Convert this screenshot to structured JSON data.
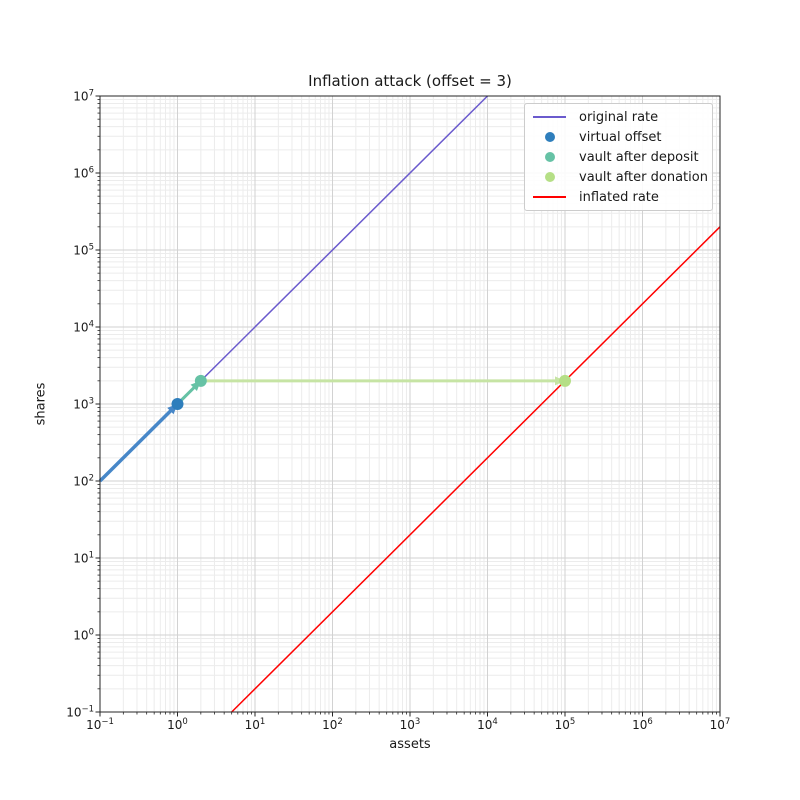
{
  "chart_data": {
    "type": "line",
    "title": "Inflation attack (offset = 3)",
    "xlabel": "assets",
    "ylabel": "shares",
    "x_scale": "log",
    "y_scale": "log",
    "xlim": [
      0.1,
      10000000
    ],
    "ylim": [
      0.1,
      10000000
    ],
    "x_tick_exponents": [
      -1,
      0,
      1,
      2,
      3,
      4,
      5,
      6,
      7
    ],
    "y_tick_exponents": [
      -1,
      0,
      1,
      2,
      3,
      4,
      5,
      6,
      7
    ],
    "grid": {
      "major": true,
      "minor": true
    },
    "series": [
      {
        "name": "original rate",
        "kind": "line",
        "color": "#6a5acd",
        "width": 1.5,
        "points": [
          [
            0.1,
            100
          ],
          [
            10000,
            10000000
          ]
        ]
      },
      {
        "name": "virtual offset",
        "kind": "scatter",
        "color": "#2e7ebc",
        "points": [
          [
            1,
            1000
          ]
        ]
      },
      {
        "name": "vault after deposit",
        "kind": "scatter",
        "color": "#66c2a5",
        "points": [
          [
            2,
            2000
          ]
        ]
      },
      {
        "name": "vault after donation",
        "kind": "scatter",
        "color": "#b5df86",
        "points": [
          [
            100000,
            2000
          ]
        ]
      },
      {
        "name": "inflated rate",
        "kind": "line",
        "color": "#ff0000",
        "width": 1.5,
        "points": [
          [
            5,
            0.1
          ],
          [
            10000000,
            200000
          ]
        ]
      }
    ],
    "arrows": [
      {
        "from": [
          0.1,
          100
        ],
        "to": [
          1,
          1000
        ],
        "color": "#4787c8",
        "width": 3.5
      },
      {
        "from": [
          1,
          1000
        ],
        "to": [
          2,
          2000
        ],
        "color": "#66c2a5",
        "width": 3
      },
      {
        "from": [
          2,
          2000
        ],
        "to": [
          100000,
          2000
        ],
        "color": "#c6e4a4",
        "width": 3
      }
    ],
    "legend": {
      "position": "upper right",
      "entries": [
        {
          "label": "original rate",
          "marker": "line",
          "color": "#6a5acd"
        },
        {
          "label": "virtual offset",
          "marker": "dot",
          "color": "#2e7ebc"
        },
        {
          "label": "vault after deposit",
          "marker": "dot",
          "color": "#66c2a5"
        },
        {
          "label": "vault after donation",
          "marker": "dot",
          "color": "#b5df86"
        },
        {
          "label": "inflated rate",
          "marker": "line",
          "color": "#ff0000"
        }
      ]
    }
  }
}
